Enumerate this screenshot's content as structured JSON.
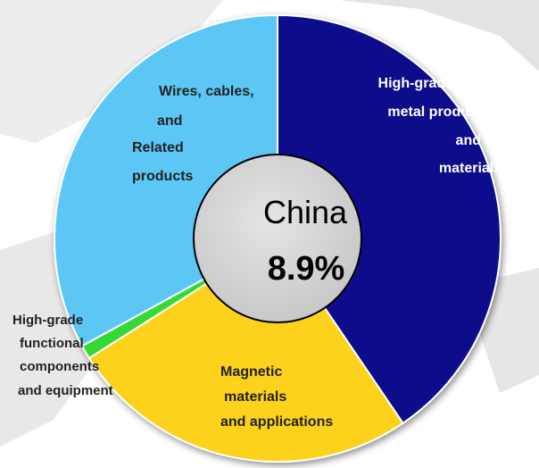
{
  "chart_data": {
    "type": "pie",
    "style": "donut",
    "center_label": "China",
    "center_value": "8.9%",
    "categories": [
      "High-grade metal products and materials",
      "Magnetic materials and applications",
      "High-grade functional components and equipment",
      "Wires, cables, and Related products"
    ],
    "values": [
      40.5,
      25.5,
      1.0,
      33.0
    ],
    "colors": [
      "#0a0a8c",
      "#fcd21c",
      "#35d935",
      "#5cc7f5"
    ],
    "slice_labels": [
      [
        "High-grade",
        "metal  products",
        "and",
        "materials"
      ],
      [
        "Magnetic",
        "materials",
        "and applications"
      ],
      [
        "High-grade",
        "functional",
        "components",
        "and equipment"
      ],
      [
        "Wires, cables,",
        "and",
        "Related",
        "products"
      ]
    ]
  }
}
